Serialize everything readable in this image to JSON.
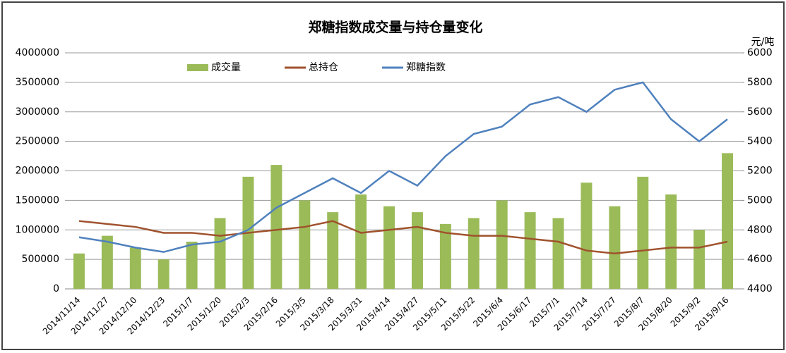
{
  "chart_data": {
    "type": "bar-line",
    "title": "郑糖指数成交量与持仓量变化",
    "y2_label": "元/吨",
    "categories": [
      "2014/11/14",
      "2014/11/27",
      "2014/12/10",
      "2014/12/23",
      "2015/1/7",
      "2015/1/20",
      "2015/2/3",
      "2015/2/16",
      "2015/3/5",
      "2015/3/18",
      "2015/3/31",
      "2015/4/14",
      "2015/4/27",
      "2015/5/11",
      "2015/5/22",
      "2015/6/4",
      "2015/6/17",
      "2015/7/1",
      "2015/7/14",
      "2015/7/27",
      "2015/8/7",
      "2015/8/20",
      "2015/9/2",
      "2015/9/16"
    ],
    "series": [
      {
        "name": "成交量",
        "kind": "bar",
        "color": "#9bbb59",
        "values": [
          600000,
          900000,
          700000,
          500000,
          800000,
          1200000,
          1900000,
          2100000,
          1500000,
          1300000,
          1600000,
          1400000,
          1300000,
          1100000,
          1200000,
          1500000,
          1300000,
          1200000,
          1800000,
          1400000,
          1900000,
          1600000,
          1000000,
          2300000
        ]
      },
      {
        "name": "总持仓",
        "kind": "line",
        "color": "#a0522d",
        "values": [
          1150000,
          1100000,
          1050000,
          950000,
          950000,
          900000,
          950000,
          1000000,
          1050000,
          1150000,
          950000,
          1000000,
          1050000,
          950000,
          900000,
          900000,
          850000,
          800000,
          650000,
          600000,
          650000,
          700000,
          700000,
          800000
        ]
      },
      {
        "name": "郑糖指数",
        "kind": "line",
        "axis": "y2",
        "color": "#4f81bd",
        "values": [
          4750,
          4720,
          4680,
          4650,
          4700,
          4720,
          4800,
          4950,
          5050,
          5150,
          5050,
          5200,
          5100,
          5300,
          5450,
          5500,
          5650,
          5700,
          5600,
          5750,
          5800,
          5550,
          5400,
          5550
        ]
      }
    ],
    "ylim": [
      0,
      4000000
    ],
    "yticks": [
      0,
      500000,
      1000000,
      1500000,
      2000000,
      2500000,
      3000000,
      3500000,
      4000000
    ],
    "y2lim": [
      4400,
      6000
    ],
    "y2ticks": [
      4400,
      4600,
      4800,
      5000,
      5200,
      5400,
      5600,
      5800,
      6000
    ],
    "grid": true
  }
}
